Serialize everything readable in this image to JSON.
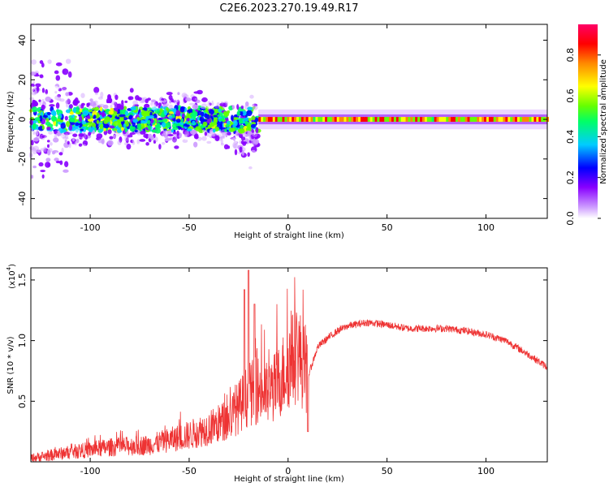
{
  "title": "C2E6.2023.270.19.49.R17",
  "chart_data": [
    {
      "type": "heatmap",
      "name": "spectrogram",
      "xlabel": "Height of straight line (km)",
      "ylabel": "Frequency (Hz)",
      "xlim": [
        -130,
        131
      ],
      "ylim": [
        -50,
        48
      ],
      "xticks": [
        -100,
        -50,
        0,
        50,
        100
      ],
      "yticks": [
        -40,
        -20,
        0,
        20,
        40
      ],
      "colorbar": {
        "label": "Normalized spectral amplitude",
        "range": [
          0,
          0.95
        ],
        "ticks": [
          "0.0",
          "0.2",
          "0.4",
          "0.6",
          "0.8"
        ],
        "tick_values": [
          0.0,
          0.2,
          0.4,
          0.6,
          0.8
        ],
        "colormap": [
          "#ffffff",
          "#cc99ff",
          "#8800ff",
          "#0000ff",
          "#00ccff",
          "#00ff66",
          "#66ff00",
          "#ffff00",
          "#ff8800",
          "#ff0000",
          "#ff0066"
        ]
      },
      "description_points": {
        "noisy_region_x": [
          -130,
          -15
        ],
        "noisy_region_freq_spread_hz": 20,
        "steady_line_x": [
          -15,
          131
        ],
        "steady_line_freq_hz": 0,
        "steady_line_amplitude": 0.9,
        "sidelobe_spread_hz": 5
      }
    },
    {
      "type": "line",
      "name": "snr",
      "xlabel": "Height of straight line (km)",
      "ylabel": "SNR (10 * v/v)",
      "yscale_label": "(x10",
      "yscale_exp": "4",
      "xlim": [
        -130,
        131
      ],
      "ylim": [
        0,
        1.6
      ],
      "xticks": [
        -100,
        -50,
        0,
        50,
        100
      ],
      "yticks": [
        "0.5",
        "1.0",
        "1.5"
      ],
      "ytick_values": [
        0.5,
        1.0,
        1.5
      ],
      "color": "#ee3333",
      "envelope_x": [
        -130,
        -110,
        -90,
        -70,
        -50,
        -40,
        -30,
        -20,
        -15,
        -10,
        -5,
        0,
        5,
        10,
        15,
        20,
        25,
        30,
        40,
        50,
        60,
        70,
        80,
        90,
        100,
        110,
        120,
        131
      ],
      "envelope_y": [
        0.03,
        0.08,
        0.12,
        0.14,
        0.22,
        0.28,
        0.35,
        0.55,
        0.6,
        0.55,
        0.65,
        0.8,
        0.9,
        0.7,
        0.95,
        1.02,
        1.08,
        1.12,
        1.15,
        1.13,
        1.1,
        1.1,
        1.1,
        1.08,
        1.05,
        1.0,
        0.9,
        0.78
      ],
      "peaks": [
        {
          "x": -20,
          "y": 1.58
        },
        {
          "x": -22,
          "y": 1.42
        },
        {
          "x": -17,
          "y": 1.3
        },
        {
          "x": 10,
          "y": 0.25
        }
      ]
    }
  ]
}
